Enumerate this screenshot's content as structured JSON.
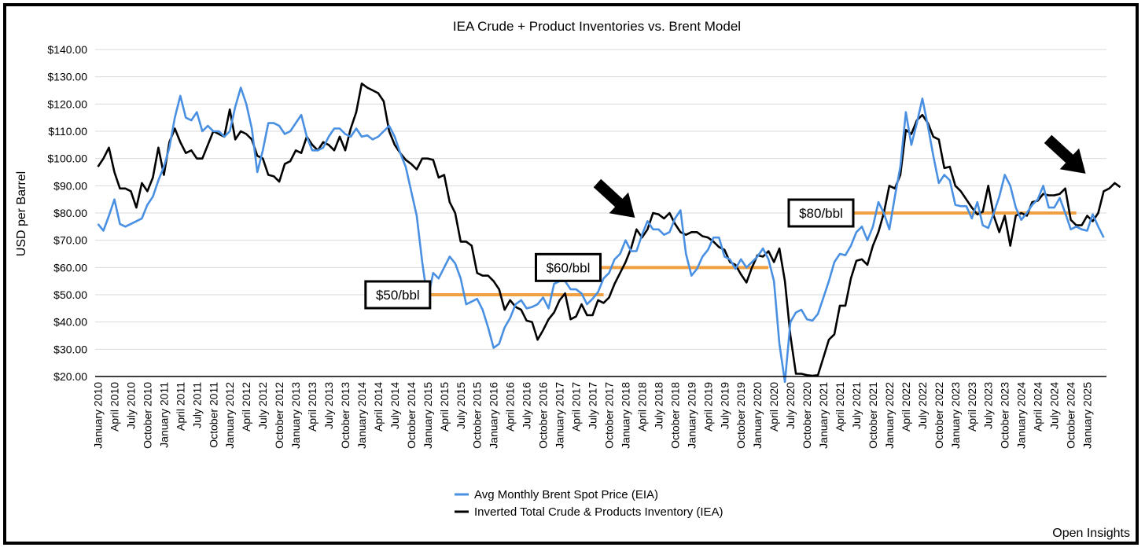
{
  "chart_data": {
    "type": "line",
    "title": "IEA Crude + Product Inventories vs. Brent Model",
    "ylabel": "USD per Barrel",
    "xlabel": "",
    "ylim": [
      20,
      140
    ],
    "y_ticks": [
      "$20.00",
      "$30.00",
      "$40.00",
      "$50.00",
      "$60.00",
      "$70.00",
      "$80.00",
      "$90.00",
      "$100.00",
      "$110.00",
      "$120.00",
      "$130.00",
      "$140.00"
    ],
    "x_ticks": [
      "January 2010",
      "April 2010",
      "July 2010",
      "October 2010",
      "January 2011",
      "April 2011",
      "July 2011",
      "October 2011",
      "January 2012",
      "April 2012",
      "July 2012",
      "October 2012",
      "January 2013",
      "April 2013",
      "July 2013",
      "October 2013",
      "January 2014",
      "April 2014",
      "July 2014",
      "October 2014",
      "January 2015",
      "April 2015",
      "July 2015",
      "October 2015",
      "January 2016",
      "April 2016",
      "July 2016",
      "October 2016",
      "January 2017",
      "April 2017",
      "July 2017",
      "October 2017",
      "January 2018",
      "April 2018",
      "July 2018",
      "October 2018",
      "January 2019",
      "April 2019",
      "July 2019",
      "October 2019",
      "January 2020",
      "April 2020",
      "July 2020",
      "October 2020",
      "January 2021",
      "April 2021",
      "July 2021",
      "October 2021",
      "January 2022",
      "April 2022",
      "July 2022",
      "October 2022",
      "January 2023",
      "April 2023",
      "July 2023",
      "October 2023",
      "January 2024",
      "April 2024",
      "July 2024",
      "October 2024",
      "January 2025"
    ],
    "x_start": "January 2010",
    "grid": "horizontal",
    "legend_position": "bottom-center",
    "series": [
      {
        "name": "Avg Monthly Brent Spot Price (EIA)",
        "color": "#4a90e2",
        "values": [
          76,
          73.5,
          79,
          85,
          76,
          75,
          76,
          77,
          78,
          83,
          86,
          92,
          97,
          104,
          115,
          123,
          115,
          114,
          117,
          110,
          112,
          110,
          110,
          108,
          110,
          119,
          126,
          120,
          111,
          95,
          103,
          113,
          113,
          112,
          109,
          110,
          113,
          116,
          108,
          103,
          103,
          104,
          108,
          111,
          111,
          109,
          108,
          111,
          108,
          108.5,
          107,
          108,
          110,
          112,
          108,
          102,
          97,
          88,
          79,
          62,
          48,
          58,
          56,
          60,
          64,
          61.5,
          56,
          46.5,
          47.5,
          48.5,
          44.5,
          38,
          30.5,
          32,
          38,
          41.5,
          46.5,
          48,
          45,
          45.5,
          46.5,
          49,
          45,
          54,
          55,
          55,
          52,
          52,
          50.5,
          46.5,
          48.5,
          51,
          56,
          58,
          63,
          65,
          70,
          66,
          66,
          72,
          77,
          74,
          74,
          72,
          73,
          78,
          81,
          65,
          57,
          59.5,
          64,
          66.5,
          71,
          71,
          64,
          63,
          59.5,
          63,
          60,
          62,
          64,
          67,
          63,
          55,
          32,
          18,
          40,
          43.5,
          44.5,
          41,
          40.5,
          43,
          49,
          55,
          62,
          65,
          64.5,
          68,
          73,
          75,
          70,
          75,
          84,
          80,
          74,
          86,
          97,
          117,
          105,
          113,
          122,
          112,
          101,
          91,
          94,
          92,
          83,
          82.5,
          82.5,
          78,
          84,
          75.5,
          74.5,
          80,
          86,
          94,
          90,
          82,
          77.5,
          80,
          83,
          85,
          90,
          82,
          82,
          85.5,
          80,
          74,
          75,
          74,
          73.5,
          79.5,
          75,
          71
        ]
      },
      {
        "name": "Inverted Total Crude & Products Inventory (IEA)",
        "color": "#000000",
        "values": [
          97,
          100,
          104,
          95,
          89,
          89,
          88,
          82,
          91,
          88,
          93,
          104,
          94,
          106,
          111,
          106,
          102,
          103,
          100,
          100,
          105,
          110,
          109,
          108,
          118,
          107,
          110,
          109,
          107,
          101,
          100,
          94,
          93.5,
          91.5,
          98,
          99,
          103,
          102,
          108,
          105,
          103,
          106,
          105,
          103,
          108,
          103,
          111,
          117,
          127.5,
          126,
          125,
          124,
          121,
          110,
          105,
          102,
          99.5,
          98,
          96,
          100,
          100,
          99.5,
          93,
          94,
          84,
          80,
          69.5,
          69.5,
          68,
          58,
          57,
          57,
          55,
          52,
          44.5,
          48,
          45.5,
          44.5,
          40.5,
          40,
          33.5,
          37,
          41,
          43.5,
          48,
          50.5,
          41,
          42,
          46.5,
          42.5,
          42.5,
          48,
          47,
          49,
          54,
          58,
          62,
          67,
          74,
          71,
          74,
          80,
          79.5,
          78,
          80,
          76,
          73,
          72,
          73,
          73,
          71.5,
          71,
          69.5,
          67.5,
          66.5,
          62,
          61,
          57.5,
          54.5,
          60,
          64.5,
          64,
          66,
          62,
          67,
          55,
          35,
          21,
          21,
          20.5,
          20.3,
          20.5,
          27,
          33.5,
          35.5,
          46,
          46,
          56,
          62.5,
          63,
          61,
          68,
          73,
          80,
          90,
          89,
          94,
          110.5,
          109,
          114,
          116,
          113,
          108,
          107,
          96.5,
          97,
          90,
          88,
          85,
          82,
          79.5,
          80.5,
          90,
          79,
          73,
          79,
          68,
          79,
          80,
          79,
          84,
          84.5,
          87,
          86.5,
          86.5,
          87,
          89,
          77.5,
          75.5,
          75.5,
          79,
          77,
          80,
          88,
          89,
          91,
          89.5
        ]
      }
    ],
    "annotations": [
      {
        "label": "$50/bbl",
        "level": 50,
        "from": "February 2015",
        "to": "September 2017"
      },
      {
        "label": "$60/bbl",
        "level": 60,
        "from": "September 2017",
        "to": "March 2020"
      },
      {
        "label": "$80/bbl",
        "level": 80,
        "from": "July 2021",
        "to": "November 2024"
      }
    ],
    "arrows": [
      {
        "points_to": "March 2018"
      },
      {
        "points_to": "January 2025"
      }
    ],
    "annotation_line_color": "#f0a040",
    "source_text": "Open Insights"
  }
}
